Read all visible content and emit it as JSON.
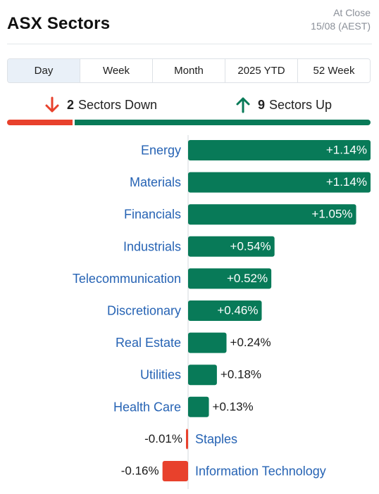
{
  "header": {
    "title": "ASX Sectors",
    "status_line1": "At Close",
    "status_line2": "15/08 (AEST)"
  },
  "tabs": [
    {
      "label": "Day",
      "active": true
    },
    {
      "label": "Week",
      "active": false
    },
    {
      "label": "Month",
      "active": false
    },
    {
      "label": "2025 YTD",
      "active": false
    },
    {
      "label": "52 Week",
      "active": false
    }
  ],
  "summary": {
    "down_count": "2",
    "down_label": "Sectors Down",
    "up_count": "9",
    "up_label": "Sectors Up"
  },
  "colors": {
    "up": "#087a58",
    "down": "#e8412c",
    "label": "#2663b4",
    "axis": "#d6dade"
  },
  "chart_data": {
    "type": "bar",
    "orientation": "horizontal",
    "unit": "%",
    "categories": [
      "Energy",
      "Materials",
      "Financials",
      "Industrials",
      "Telecommunication",
      "Discretionary",
      "Real Estate",
      "Utilities",
      "Health Care",
      "Staples",
      "Information Technology"
    ],
    "values": [
      1.14,
      1.14,
      1.05,
      0.54,
      0.52,
      0.46,
      0.24,
      0.18,
      0.13,
      -0.01,
      -0.16
    ],
    "labels": [
      "+1.14%",
      "+1.14%",
      "+1.05%",
      "+0.54%",
      "+0.52%",
      "+0.46%",
      "+0.24%",
      "+0.18%",
      "+0.13%",
      "-0.01%",
      "-0.16%"
    ],
    "xlim": [
      -0.16,
      1.14
    ]
  }
}
